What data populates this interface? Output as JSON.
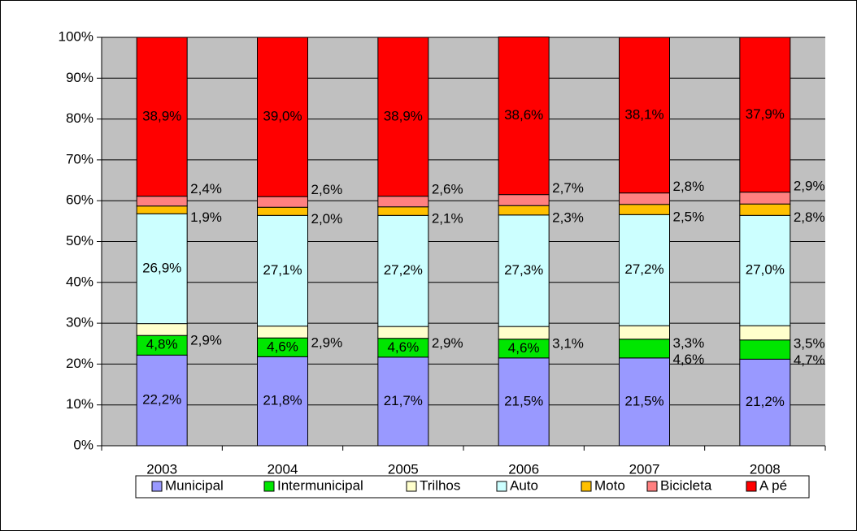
{
  "chart_data": {
    "type": "bar",
    "stacked": true,
    "categories": [
      "2003",
      "2004",
      "2005",
      "2006",
      "2007",
      "2008"
    ],
    "series": [
      {
        "name": "Municipal",
        "color": "#9999ff",
        "values": [
          22.2,
          21.8,
          21.7,
          21.5,
          21.5,
          21.2
        ],
        "value_labels": [
          "22,2%",
          "21,8%",
          "21,7%",
          "21,5%",
          "21,5%",
          "21,2%"
        ]
      },
      {
        "name": "Intermunicipal",
        "color": "#00e600",
        "values": [
          4.8,
          4.6,
          4.6,
          4.6,
          4.6,
          4.7
        ],
        "value_labels": [
          "4,8%",
          "4,6%",
          "4,6%",
          "4,6%",
          "4,6%",
          "4,7%"
        ]
      },
      {
        "name": "Trilhos",
        "color": "#ffffcc",
        "values": [
          2.9,
          2.9,
          2.9,
          3.1,
          3.3,
          3.5
        ],
        "value_labels": [
          "2,9%",
          "2,9%",
          "2,9%",
          "3,1%",
          "3,3%",
          "3,5%"
        ]
      },
      {
        "name": "Auto",
        "color": "#ccffff",
        "values": [
          26.9,
          27.1,
          27.2,
          27.3,
          27.2,
          27.0
        ],
        "value_labels": [
          "26,9%",
          "27,1%",
          "27,2%",
          "27,3%",
          "27,2%",
          "27,0%"
        ]
      },
      {
        "name": "Moto",
        "color": "#ffc000",
        "values": [
          1.9,
          2.0,
          2.1,
          2.3,
          2.5,
          2.8
        ],
        "value_labels": [
          "1,9%",
          "2,0%",
          "2,1%",
          "2,3%",
          "2,5%",
          "2,8%"
        ]
      },
      {
        "name": "Bicicleta",
        "color": "#ff8080",
        "values": [
          2.4,
          2.6,
          2.6,
          2.7,
          2.8,
          2.9
        ],
        "value_labels": [
          "2,4%",
          "2,6%",
          "2,6%",
          "2,7%",
          "2,8%",
          "2,9%"
        ]
      },
      {
        "name": "A pé",
        "color": "#ff0000",
        "values": [
          38.9,
          39.0,
          38.9,
          38.6,
          38.1,
          37.9
        ],
        "value_labels": [
          "38,9%",
          "39,0%",
          "38,9%",
          "38,6%",
          "38,1%",
          "37,9%"
        ]
      }
    ],
    "ylim": [
      0,
      100
    ],
    "yticks": [
      {
        "value": 0,
        "label": "0%"
      },
      {
        "value": 10,
        "label": "10%"
      },
      {
        "value": 20,
        "label": "20%"
      },
      {
        "value": 30,
        "label": "30%"
      },
      {
        "value": 40,
        "label": "40%"
      },
      {
        "value": 50,
        "label": "50%"
      },
      {
        "value": 60,
        "label": "60%"
      },
      {
        "value": 70,
        "label": "70%"
      },
      {
        "value": 80,
        "label": "80%"
      },
      {
        "value": 90,
        "label": "90%"
      },
      {
        "value": 100,
        "label": "100%"
      }
    ],
    "grid": true,
    "legend": "bottom"
  }
}
